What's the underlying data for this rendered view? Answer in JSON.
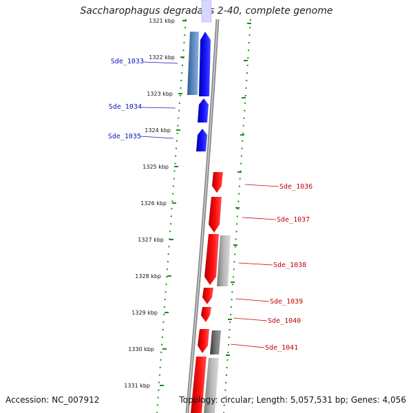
{
  "header": {
    "title": "Saccharophagus degradans 2-40, complete genome"
  },
  "footer": {
    "accession": "Accession: NC_007912",
    "topology": "Topology: circular; Length: 5,057,531 bp; Genes: 4,056"
  },
  "ticks": [
    "1321 kbp",
    "1322 kbp",
    "1323 kbp",
    "1324 kbp",
    "1325 kbp",
    "1326 kbp",
    "1327 kbp",
    "1328 kbp",
    "1329 kbp",
    "1330 kbp",
    "1331 kbp"
  ],
  "genes": {
    "left": [
      "Sde_1033",
      "Sde_1034",
      "Sde_1035"
    ],
    "right": [
      "Sde_1036",
      "Sde_1037",
      "Sde_1038",
      "Sde_1039",
      "Sde_1040",
      "Sde_1041"
    ]
  },
  "colors": {
    "forward_strand": "#0000ee",
    "reverse_strand": "#ee0000",
    "label_left": "#1010c0",
    "label_right": "#c00000",
    "tick_dots": "#1a8a1a",
    "secondary_blue": "#3f6fa6",
    "secondary_gray": "#9a9a9a"
  }
}
